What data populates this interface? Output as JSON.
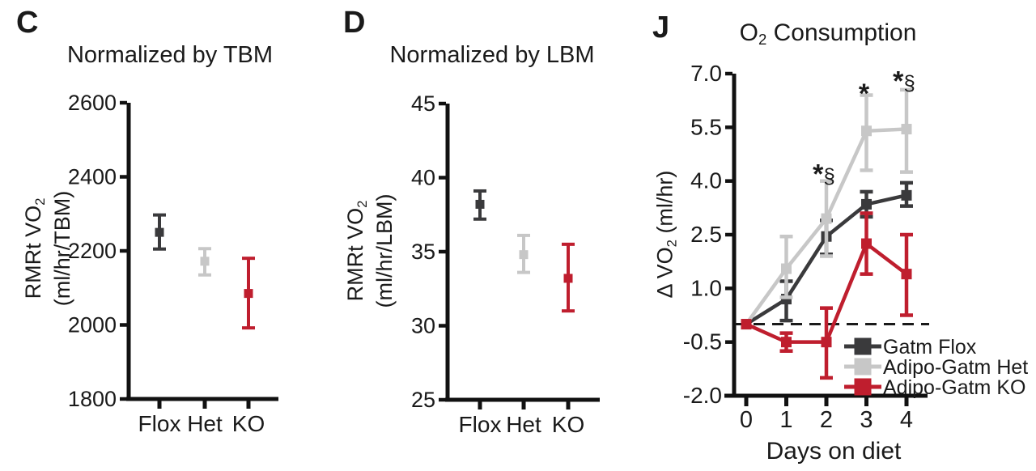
{
  "figure": {
    "background": "#ffffff",
    "text_color": "#1a1a1a",
    "axis_color": "#111111"
  },
  "colors": {
    "flox_dark": "#3a3a3c",
    "het_gray": "#c7c7c7",
    "ko_red": "#bf1e2e"
  },
  "panels": {
    "c": {
      "label": "C",
      "title": "Normalized by TBM",
      "ylabel": {
        "pre": "RMRt VO",
        "sub": "2",
        "line2": "(ml/hr/TBM)"
      }
    },
    "d": {
      "label": "D",
      "title": "Normalized by LBM",
      "ylabel": {
        "pre": "RMRt VO",
        "sub": "2",
        "line2": "(ml/hr/LBM)"
      }
    },
    "j": {
      "label": "J",
      "title": {
        "pre": "O",
        "sub": "2",
        "post": " Consumption"
      },
      "ylabel": {
        "pre": "Δ VO",
        "sub": "2",
        "post": " (ml/hr)"
      },
      "xlabel": "Days on diet"
    }
  },
  "chart_data": [
    {
      "panel": "C",
      "type": "scatter",
      "title": "Normalized by TBM",
      "ylabel": "RMRt VO2 (ml/hr/TBM)",
      "categories": [
        "Flox",
        "Het",
        "KO"
      ],
      "ylim": [
        1800,
        2600
      ],
      "yticks": [
        1800,
        2000,
        2200,
        2400,
        2600
      ],
      "points": [
        {
          "group": "Flox",
          "mean": 2250,
          "err_low": 2205,
          "err_high": 2297,
          "color": "#3a3a3c"
        },
        {
          "group": "Het",
          "mean": 2172,
          "err_low": 2135,
          "err_high": 2206,
          "color": "#c7c7c7"
        },
        {
          "group": "KO",
          "mean": 2085,
          "err_low": 1992,
          "err_high": 2180,
          "color": "#bf1e2e"
        }
      ]
    },
    {
      "panel": "D",
      "type": "scatter",
      "title": "Normalized by LBM",
      "ylabel": "RMRt VO2 (ml/hr/LBM)",
      "categories": [
        "Flox",
        "Het",
        "KO"
      ],
      "ylim": [
        25,
        45
      ],
      "yticks": [
        25,
        30,
        35,
        40,
        45
      ],
      "points": [
        {
          "group": "Flox",
          "mean": 38.2,
          "err_low": 37.2,
          "err_high": 39.1,
          "color": "#3a3a3c"
        },
        {
          "group": "Het",
          "mean": 34.8,
          "err_low": 33.6,
          "err_high": 36.1,
          "color": "#c7c7c7"
        },
        {
          "group": "KO",
          "mean": 33.2,
          "err_low": 31.0,
          "err_high": 35.5,
          "color": "#bf1e2e"
        }
      ]
    },
    {
      "panel": "J",
      "type": "line",
      "title": "O2 Consumption",
      "xlabel": "Days on diet",
      "ylabel": "Δ VO2 (ml/hr)",
      "x": [
        0,
        1,
        2,
        3,
        4
      ],
      "ylim": [
        -2.0,
        7.0
      ],
      "yticks": [
        -2.0,
        -0.5,
        1.0,
        2.5,
        4.0,
        5.5,
        7.0
      ],
      "ytick_labels": [
        "-2.0",
        "-0.5",
        "1.0",
        "2.5",
        "4.0",
        "5.5",
        "7.0"
      ],
      "baseline": {
        "y": 0,
        "style": "dashed"
      },
      "series": [
        {
          "name": "Gatm Flox",
          "color": "#3a3a3c",
          "values": [
            0,
            0.7,
            2.45,
            3.35,
            3.6
          ],
          "err_low": [
            0,
            0.1,
            1.95,
            3.0,
            3.3
          ],
          "err_high": [
            0,
            1.2,
            2.9,
            3.7,
            3.95
          ]
        },
        {
          "name": "Adipo-Gatm Het",
          "color": "#c7c7c7",
          "values": [
            0,
            1.55,
            2.95,
            5.4,
            5.45
          ],
          "err_low": [
            0,
            0.75,
            1.9,
            4.3,
            4.25
          ],
          "err_high": [
            0,
            2.45,
            4.0,
            6.4,
            6.55
          ]
        },
        {
          "name": "Adipo-Gatm KO",
          "color": "#bf1e2e",
          "values": [
            0,
            -0.5,
            -0.5,
            2.25,
            1.4
          ],
          "err_low": [
            0,
            -0.75,
            -1.5,
            1.4,
            0.25
          ],
          "err_high": [
            0,
            -0.25,
            0.45,
            3.1,
            2.5
          ]
        }
      ],
      "annotations": [
        {
          "x": 2,
          "y": 4.3,
          "text": "*§"
        },
        {
          "x": 3,
          "y": 6.55,
          "text": "*"
        },
        {
          "x": 4,
          "y": 6.9,
          "text": "*§"
        }
      ],
      "legend": {
        "location": "inside-bottom-right",
        "entries": [
          "Gatm Flox",
          "Adipo-Gatm Het",
          "Adipo-Gatm KO"
        ]
      }
    }
  ]
}
